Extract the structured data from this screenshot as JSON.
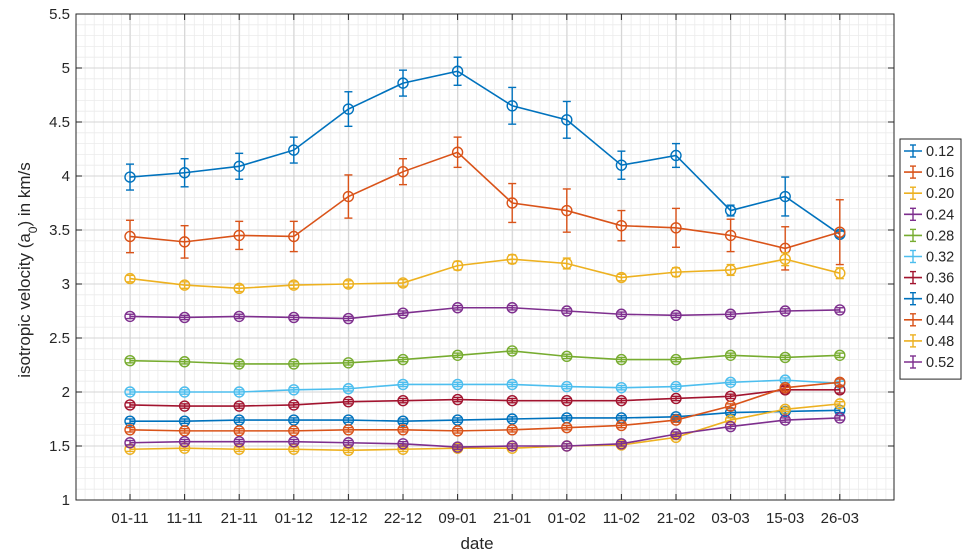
{
  "chart_data": {
    "type": "line",
    "xlabel": "date",
    "ylabel_main": "isotropic velocity (a",
    "ylabel_sub": "0",
    "ylabel_tail": ") in km/s",
    "categories": [
      "01-11",
      "11-11",
      "21-11",
      "01-12",
      "12-12",
      "22-12",
      "09-01",
      "21-01",
      "01-02",
      "11-02",
      "21-02",
      "03-03",
      "15-03",
      "26-03"
    ],
    "ylim": [
      1,
      5.5
    ],
    "yticks": [
      1,
      1.5,
      2,
      2.5,
      3,
      3.5,
      4,
      4.5,
      5,
      5.5
    ],
    "ytick_labels": [
      "1",
      "1.5",
      "2",
      "2.5",
      "3",
      "3.5",
      "4",
      "4.5",
      "5",
      "5.5"
    ],
    "grid": "major and minor",
    "legend_position": "right",
    "series": [
      {
        "name": "0.12",
        "color": "#0072BD",
        "values": [
          3.99,
          4.03,
          4.09,
          4.24,
          4.62,
          4.86,
          4.97,
          4.65,
          4.52,
          4.1,
          4.19,
          3.68,
          3.81,
          3.46
        ],
        "err": [
          0.12,
          0.13,
          0.12,
          0.12,
          0.16,
          0.12,
          0.13,
          0.17,
          0.17,
          0.13,
          0.11,
          0.05,
          0.18,
          0.03
        ]
      },
      {
        "name": "0.16",
        "color": "#D95319",
        "values": [
          3.44,
          3.39,
          3.45,
          3.44,
          3.81,
          4.04,
          4.22,
          3.75,
          3.68,
          3.54,
          3.52,
          3.45,
          3.33,
          3.48
        ],
        "err": [
          0.15,
          0.15,
          0.13,
          0.14,
          0.2,
          0.12,
          0.14,
          0.18,
          0.2,
          0.14,
          0.18,
          0.15,
          0.2,
          0.3
        ]
      },
      {
        "name": "0.20",
        "color": "#EDB120",
        "values": [
          3.05,
          2.99,
          2.96,
          2.99,
          3.0,
          3.01,
          3.17,
          3.23,
          3.19,
          3.06,
          3.11,
          3.13,
          3.23,
          3.1
        ],
        "err": [
          0.03,
          0.03,
          0.03,
          0.03,
          0.03,
          0.03,
          0.04,
          0.04,
          0.05,
          0.03,
          0.04,
          0.05,
          0.06,
          0.05
        ]
      },
      {
        "name": "0.24",
        "color": "#7E2F8E",
        "values": [
          2.7,
          2.69,
          2.7,
          2.69,
          2.68,
          2.73,
          2.78,
          2.78,
          2.75,
          2.72,
          2.71,
          2.72,
          2.75,
          2.76
        ],
        "err": [
          0.02,
          0.02,
          0.02,
          0.02,
          0.02,
          0.02,
          0.02,
          0.02,
          0.02,
          0.02,
          0.02,
          0.02,
          0.02,
          0.02
        ]
      },
      {
        "name": "0.28",
        "color": "#77AC30",
        "values": [
          2.29,
          2.28,
          2.26,
          2.26,
          2.27,
          2.3,
          2.34,
          2.38,
          2.33,
          2.3,
          2.3,
          2.34,
          2.32,
          2.34
        ],
        "err": [
          0.02,
          0.02,
          0.02,
          0.02,
          0.02,
          0.02,
          0.02,
          0.02,
          0.02,
          0.02,
          0.02,
          0.02,
          0.02,
          0.02
        ]
      },
      {
        "name": "0.32",
        "color": "#4DBEEE",
        "values": [
          2.0,
          2.0,
          2.0,
          2.02,
          2.03,
          2.07,
          2.07,
          2.07,
          2.05,
          2.04,
          2.05,
          2.09,
          2.11,
          2.08
        ],
        "err": [
          0.02,
          0.02,
          0.02,
          0.02,
          0.02,
          0.02,
          0.02,
          0.02,
          0.02,
          0.02,
          0.02,
          0.02,
          0.02,
          0.02
        ]
      },
      {
        "name": "0.36",
        "color": "#A2142F",
        "values": [
          1.88,
          1.87,
          1.87,
          1.88,
          1.91,
          1.92,
          1.93,
          1.92,
          1.92,
          1.92,
          1.94,
          1.96,
          2.02,
          2.02
        ],
        "err": [
          0.02,
          0.02,
          0.02,
          0.02,
          0.02,
          0.02,
          0.02,
          0.02,
          0.02,
          0.02,
          0.02,
          0.02,
          0.03,
          0.03
        ]
      },
      {
        "name": "0.40",
        "color": "#0072BD",
        "values": [
          1.73,
          1.73,
          1.74,
          1.74,
          1.74,
          1.73,
          1.74,
          1.75,
          1.76,
          1.76,
          1.77,
          1.81,
          1.82,
          1.83
        ],
        "err": [
          0.02,
          0.02,
          0.02,
          0.02,
          0.02,
          0.02,
          0.02,
          0.02,
          0.02,
          0.02,
          0.02,
          0.02,
          0.02,
          0.02
        ]
      },
      {
        "name": "0.44",
        "color": "#D95319",
        "values": [
          1.65,
          1.64,
          1.64,
          1.64,
          1.65,
          1.65,
          1.64,
          1.65,
          1.67,
          1.69,
          1.74,
          1.87,
          2.04,
          2.09
        ],
        "err": [
          0.02,
          0.02,
          0.02,
          0.02,
          0.02,
          0.02,
          0.02,
          0.02,
          0.02,
          0.02,
          0.02,
          0.02,
          0.03,
          0.03
        ]
      },
      {
        "name": "0.48",
        "color": "#EDB120",
        "values": [
          1.47,
          1.48,
          1.47,
          1.47,
          1.46,
          1.47,
          1.48,
          1.48,
          1.5,
          1.51,
          1.58,
          1.74,
          1.84,
          1.89
        ],
        "err": [
          0.02,
          0.02,
          0.02,
          0.02,
          0.02,
          0.02,
          0.02,
          0.02,
          0.02,
          0.02,
          0.02,
          0.02,
          0.02,
          0.02
        ]
      },
      {
        "name": "0.52",
        "color": "#7E2F8E",
        "values": [
          1.53,
          1.54,
          1.54,
          1.54,
          1.53,
          1.52,
          1.49,
          1.5,
          1.5,
          1.52,
          1.61,
          1.68,
          1.74,
          1.76
        ],
        "err": [
          0.02,
          0.02,
          0.02,
          0.02,
          0.02,
          0.02,
          0.02,
          0.02,
          0.02,
          0.02,
          0.02,
          0.02,
          0.02,
          0.02
        ]
      }
    ]
  }
}
